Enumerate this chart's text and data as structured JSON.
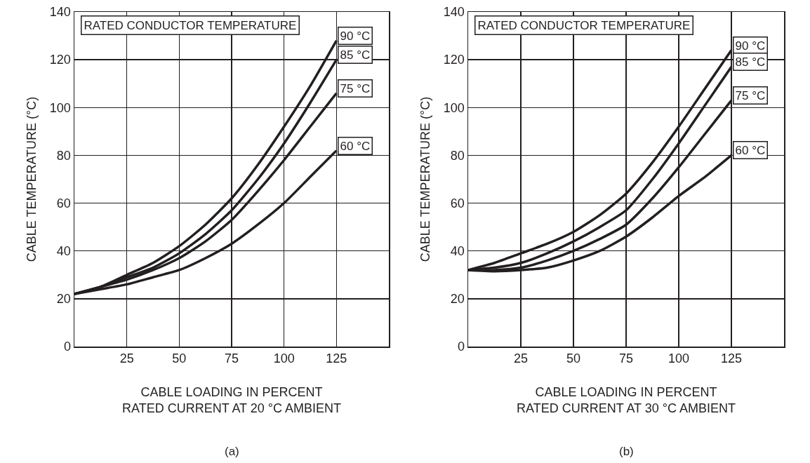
{
  "chart_data": [
    {
      "type": "line",
      "xlabel": "CABLE LOADING IN PERCENT\nRATED CURRENT AT 20 °C AMBIENT",
      "ylabel": "CABLE TEMPERATURE (°C)",
      "legend_title": "RATED CONDUCTOR TEMPERATURE",
      "annotations": [
        "(a)"
      ],
      "x": [
        0,
        12.5,
        25,
        37.5,
        50,
        62.5,
        75,
        87.5,
        100,
        112.5,
        125
      ],
      "series": [
        {
          "name": "90 °C",
          "color": "#231f20",
          "values": [
            22,
            25,
            30,
            35,
            42,
            51,
            62,
            76,
            92,
            109,
            128
          ]
        },
        {
          "name": "85 °C",
          "color": "#231f20",
          "values": [
            22,
            25,
            29,
            33,
            39,
            47,
            57,
            70,
            85,
            102,
            120
          ]
        },
        {
          "name": "75 °C",
          "color": "#231f20",
          "values": [
            22,
            25,
            28,
            32,
            37,
            44,
            53,
            65,
            78,
            92,
            106
          ]
        },
        {
          "name": "60 °C",
          "color": "#231f20",
          "values": [
            22,
            24,
            26,
            29,
            32,
            37,
            43,
            51,
            60,
            71,
            82
          ]
        }
      ],
      "xlim": [
        0,
        150
      ],
      "xticks": [
        25,
        50,
        75,
        100,
        125
      ],
      "ylim": [
        0,
        140
      ],
      "yticks": [
        0,
        20,
        40,
        60,
        80,
        100,
        120,
        140
      ],
      "grid": true,
      "marker": "none",
      "line_style": "solid",
      "legend": "right"
    },
    {
      "type": "line",
      "xlabel": "CABLE LOADING IN PERCENT\nRATED CURRENT AT 30 °C AMBIENT",
      "ylabel": "CABLE TEMPERATURE (°C)",
      "legend_title": "RATED CONDUCTOR TEMPERATURE",
      "annotations": [
        "(b)"
      ],
      "x": [
        0,
        12.5,
        25,
        37.5,
        50,
        62.5,
        75,
        87.5,
        100,
        112.5,
        125
      ],
      "series": [
        {
          "name": "90 °C",
          "color": "#231f20",
          "values": [
            32,
            35,
            39,
            43,
            48,
            55,
            64,
            77,
            92,
            108,
            124
          ]
        },
        {
          "name": "85 °C",
          "color": "#231f20",
          "values": [
            32,
            33,
            35,
            39,
            44,
            50,
            57,
            70,
            85,
            101,
            117
          ]
        },
        {
          "name": "75 °C",
          "color": "#231f20",
          "values": [
            32,
            32,
            33,
            36,
            40,
            45,
            51,
            62,
            75,
            89,
            103
          ]
        },
        {
          "name": "60 °C",
          "color": "#231f20",
          "values": [
            32,
            31.5,
            32,
            33,
            36,
            40,
            46,
            54,
            63,
            71,
            80
          ]
        }
      ],
      "xlim": [
        0,
        150
      ],
      "xticks": [
        25,
        50,
        75,
        100,
        125
      ],
      "ylim": [
        0,
        140
      ],
      "yticks": [
        0,
        20,
        40,
        60,
        80,
        100,
        120,
        140
      ],
      "grid": true,
      "marker": "none",
      "line_style": "solid",
      "legend": "right"
    }
  ]
}
